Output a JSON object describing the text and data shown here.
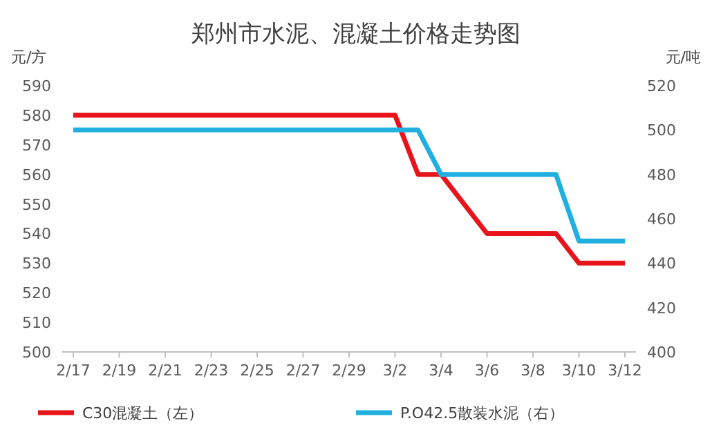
{
  "chart_data": {
    "type": "line",
    "title": "郑州市水泥、混凝土价格走势图",
    "ylabel": "元/方",
    "y2label": "元/吨",
    "categories": [
      "2/17",
      null,
      "2/19",
      null,
      "2/21",
      null,
      "2/23",
      null,
      "2/25",
      null,
      "2/27",
      null,
      "2/29",
      null,
      "3/2",
      null,
      "3/4",
      null,
      "3/6",
      null,
      "3/8",
      null,
      "3/10",
      null,
      "3/12"
    ],
    "series": [
      {
        "name": "C30混凝土（左）",
        "color": "#e8141b",
        "values": [
          580,
          580,
          580,
          580,
          580,
          580,
          580,
          580,
          580,
          580,
          580,
          580,
          580,
          580,
          580,
          560,
          560,
          550,
          540,
          540,
          540,
          540,
          530,
          530,
          530
        ]
      },
      {
        "name": "P.O42.5散装水泥（右）",
        "color": "#1fb0e0",
        "axis": "y2",
        "values": [
          500,
          500,
          500,
          500,
          500,
          500,
          500,
          500,
          500,
          500,
          500,
          500,
          500,
          500,
          500,
          500,
          480,
          480,
          480,
          480,
          480,
          480,
          450,
          450,
          450
        ]
      }
    ],
    "ylim": [
      500,
      590
    ],
    "yticks": [
      500,
      510,
      520,
      530,
      540,
      550,
      560,
      570,
      580,
      590
    ],
    "y2lim": [
      400,
      520
    ],
    "y2ticks": [
      400,
      420,
      440,
      460,
      480,
      500,
      520
    ],
    "legend": "bottom",
    "marker": "none",
    "line_style": "solid"
  }
}
